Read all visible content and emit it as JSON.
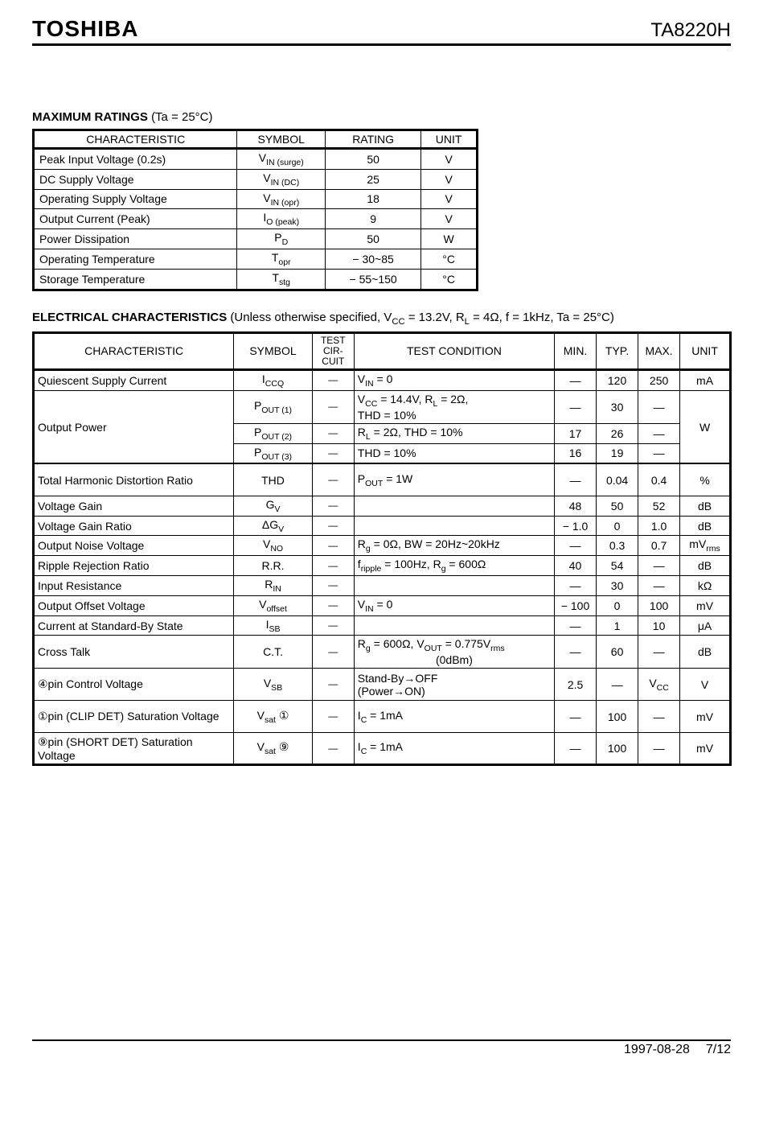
{
  "header": {
    "brand": "TOSHIBA",
    "part": "TA8220H"
  },
  "section1": {
    "title": "MAXIMUM RATINGS",
    "cond": "(Ta = 25°C)",
    "columns": [
      "CHARACTERISTIC",
      "SYMBOL",
      "RATING",
      "UNIT"
    ],
    "rows": [
      {
        "char": "Peak Input Voltage (0.2s)",
        "sym": "V",
        "sub": "IN (surge)",
        "rat": "50",
        "unit": "V"
      },
      {
        "char": "DC Supply Voltage",
        "sym": "V",
        "sub": "IN (DC)",
        "rat": "25",
        "unit": "V"
      },
      {
        "char": "Operating Supply Voltage",
        "sym": "V",
        "sub": "IN (opr)",
        "rat": "18",
        "unit": "V"
      },
      {
        "char": "Output Current (Peak)",
        "sym": "I",
        "sub": "O (peak)",
        "rat": "9",
        "unit": "V"
      },
      {
        "char": "Power Dissipation",
        "sym": "P",
        "sub": "D",
        "rat": "50",
        "unit": "W"
      },
      {
        "char": "Operating Temperature",
        "sym": "T",
        "sub": "opr",
        "rat": "− 30~85",
        "unit": "°C"
      },
      {
        "char": "Storage Temperature",
        "sym": "T",
        "sub": "stg",
        "rat": "− 55~150",
        "unit": "°C"
      }
    ]
  },
  "section2": {
    "title": "ELECTRICAL CHARACTERISTICS",
    "cond_parts": {
      "p1": "(Unless otherwise specified, V",
      "p1sub": "CC",
      "p2": " = 13.2V, R",
      "p2sub": "L",
      "p3": " = 4Ω, f = 1kHz, Ta = 25°C)"
    },
    "columns": [
      "CHARACTERISTIC",
      "SYMBOL",
      "TEST CIR-CUIT",
      "TEST CONDITION",
      "MIN.",
      "TYP.",
      "MAX.",
      "UNIT"
    ],
    "rows": [
      {
        "char": "Quiescent Supply Current",
        "sym_html": "I<sub>CCQ</sub>",
        "tc": "—",
        "cond_html": "V<sub>IN</sub> = 0",
        "min": "—",
        "typ": "120",
        "max": "250",
        "unit": "mA"
      },
      {
        "group": "op",
        "char": "Output Power",
        "char_rowspan": 3,
        "sym_html": "P<sub>OUT (1)</sub>",
        "tc": "—",
        "cond_html": "V<sub>CC</sub> = 14.4V, R<sub>L</sub> = 2Ω,<br>THD = 10%",
        "min": "—",
        "typ": "30",
        "max": "—",
        "unit": "W",
        "unit_rowspan": 3,
        "tall": true
      },
      {
        "group": "op",
        "sym_html": "P<sub>OUT (2)</sub>",
        "tc": "—",
        "cond_html": "R<sub>L</sub> = 2Ω, THD = 10%",
        "min": "17",
        "typ": "26",
        "max": "—"
      },
      {
        "group": "op",
        "sym_html": "P<sub>OUT (3)</sub>",
        "tc": "—",
        "cond_html": "THD = 10%",
        "min": "16",
        "typ": "19",
        "max": "—"
      },
      {
        "thick": true,
        "char": "Total Harmonic Distortion Ratio",
        "sym_html": "THD",
        "tc": "—",
        "cond_html": "P<sub>OUT</sub> = 1W",
        "min": "—",
        "typ": "0.04",
        "max": "0.4",
        "unit": "%",
        "tall": true
      },
      {
        "char": "Voltage Gain",
        "sym_html": "G<sub>V</sub>",
        "tc": "—",
        "cond_html": "",
        "min": "48",
        "typ": "50",
        "max": "52",
        "unit": "dB"
      },
      {
        "char": "Voltage Gain Ratio",
        "sym_html": "ΔG<sub>V</sub>",
        "tc": "—",
        "cond_html": "",
        "min": "− 1.0",
        "typ": "0",
        "max": "1.0",
        "unit": "dB"
      },
      {
        "char": "Output Noise Voltage",
        "sym_html": "V<sub>NO</sub>",
        "tc": "—",
        "cond_html": "R<sub>g</sub> = 0Ω, BW = 20Hz~20kHz",
        "min": "—",
        "typ": "0.3",
        "max": "0.7",
        "unit_html": "mV<sub>rms</sub>"
      },
      {
        "char": "Ripple Rejection Ratio",
        "sym_html": "R.R.",
        "tc": "—",
        "cond_html": "f<sub>ripple</sub> = 100Hz, R<sub>g</sub> = 600Ω",
        "min": "40",
        "typ": "54",
        "max": "—",
        "unit": "dB"
      },
      {
        "char": "Input Resistance",
        "sym_html": "R<sub>IN</sub>",
        "tc": "—",
        "cond_html": "",
        "min": "—",
        "typ": "30",
        "max": "—",
        "unit": "kΩ"
      },
      {
        "char": "Output Offset Voltage",
        "sym_html": "V<sub>offset</sub>",
        "tc": "—",
        "cond_html": "V<sub>IN</sub> = 0",
        "min": "− 100",
        "typ": "0",
        "max": "100",
        "unit": "mV"
      },
      {
        "char": "Current at Standard-By State",
        "sym_html": "I<sub>SB</sub>",
        "tc": "—",
        "cond_html": "",
        "min": "—",
        "typ": "1",
        "max": "10",
        "unit": "μA"
      },
      {
        "char": "Cross Talk",
        "sym_html": "C.T.",
        "tc": "—",
        "cond_html": "R<sub>g</sub> = 600Ω, V<sub>OUT</sub> = 0.775V<sub>rms</sub><br><span style='display:inline-block;width:100%;text-align:center'>(0dBm)</span>",
        "min": "—",
        "typ": "60",
        "max": "—",
        "unit": "dB",
        "tall": true
      },
      {
        "char": "④pin Control Voltage",
        "sym_html": "V<sub>SB</sub>",
        "tc": "—",
        "cond_html": "Stand-By→OFF<br>(Power→ON)",
        "min": "2.5",
        "typ": "—",
        "max_html": "V<sub>CC</sub>",
        "unit": "V",
        "tall": true
      },
      {
        "char": "①pin (CLIP DET) Saturation Voltage",
        "sym_html": "V<sub>sat</sub> ①",
        "tc": "—",
        "cond_html": "I<sub>C</sub> = 1mA",
        "min": "—",
        "typ": "100",
        "max": "—",
        "unit": "mV",
        "tall": true
      },
      {
        "char": "⑨pin (SHORT DET) Saturation Voltage",
        "sym_html": "V<sub>sat</sub> ⑨",
        "tc": "—",
        "cond_html": "I<sub>C</sub> = 1mA",
        "min": "—",
        "typ": "100",
        "max": "—",
        "unit": "mV",
        "tall": true
      }
    ]
  },
  "footer": {
    "date": "1997-08-28",
    "page": "7/12"
  }
}
